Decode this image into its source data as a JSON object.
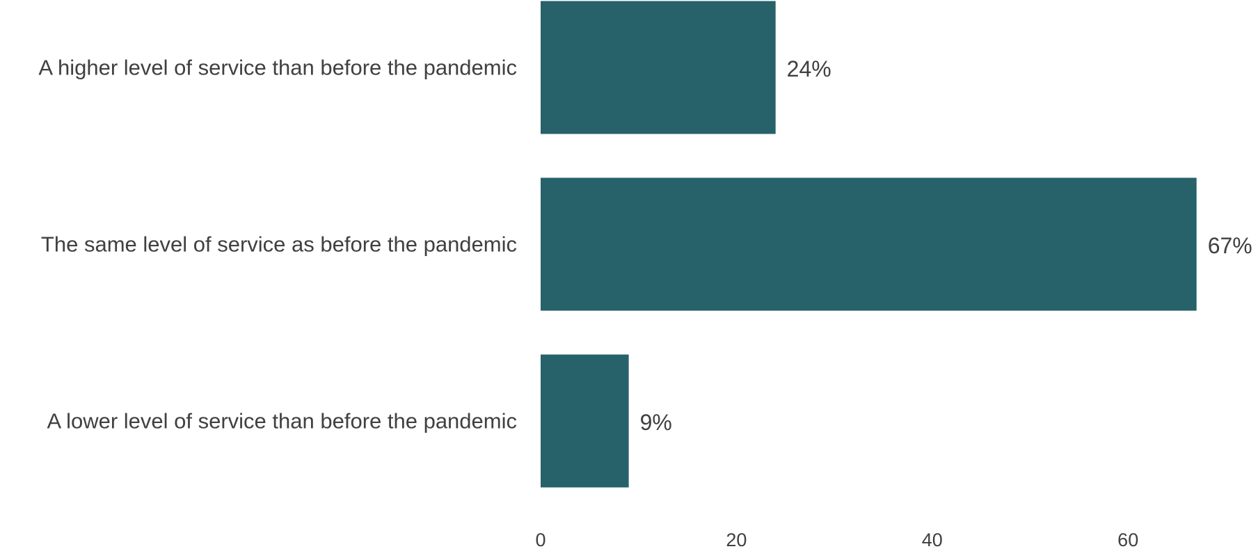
{
  "chart_data": {
    "type": "bar",
    "orientation": "horizontal",
    "categories": [
      "A higher level of service than before the pandemic",
      "The same level of service as before the pandemic",
      "A lower level of service than before the pandemic"
    ],
    "values": [
      24,
      67,
      9
    ],
    "data_labels": [
      "24%",
      "67%",
      "9%"
    ],
    "x_ticks": [
      0,
      20,
      40,
      60
    ],
    "x_tick_labels": [
      "0",
      "20",
      "40",
      "60"
    ],
    "xlim": [
      0,
      70
    ],
    "title": "",
    "xlabel": "",
    "ylabel": "",
    "grid": false,
    "legend": "none",
    "bar_color": "#276169",
    "text_color": "#404040"
  }
}
